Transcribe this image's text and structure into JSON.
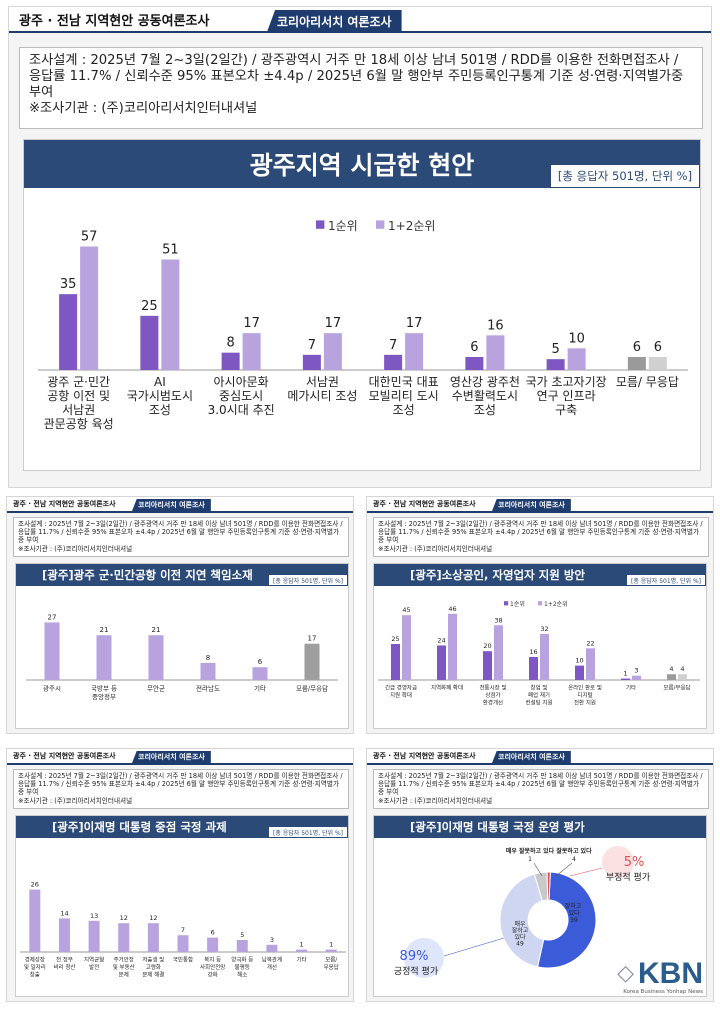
{
  "header": {
    "title": "광주 · 전남  지역현안  공동여론조사",
    "badge": "코리아리서치  여론조사"
  },
  "method": {
    "line1": "조사설계 : 2025년 7월 2~3일(2일간) / 광주광역시 거주 만 18세 이상 남녀 501명 / RDD를 이용한 전화면접조사 / 응답률 11.7% / 신뢰수준 95% 표본오차 ±4.4p / 2025년 6월 말 행안부 주민등록인구통계 기준 성·연령·지역별가중 부여",
    "line2": "※조사기관 : (주)코리아리서치인터내셔널"
  },
  "main_panel": {
    "title": "광주지역 시급한 현안",
    "unit": "[총 응답자 501명, 단위 %]"
  },
  "panel_a": {
    "title": "[광주]광주 군·민간공항 이전 지연 책임소재",
    "unit": "[총 응답자 501명, 단위 %]"
  },
  "panel_b": {
    "title": "[광주]소상공인, 자영업자 지원 방안",
    "unit": "[총 응답자 501명, 단위 %]"
  },
  "panel_c": {
    "title": "[광주]이재명 대통령 중점 국정 과제",
    "unit": "[총 응답자 501명, 단위 %]"
  },
  "panel_d": {
    "title": "[광주]이재명 대통령 국정 운영 평가"
  },
  "logo": {
    "text": "KBN",
    "sub": "Korea Business Yonhap News"
  },
  "colors": {
    "navy": "#2b4a78",
    "dark_purple": "#7e57c2",
    "light_purple": "#b9a3de",
    "gray": "#9e9e9e"
  },
  "chart_data": [
    {
      "type": "bar",
      "title": "광주지역 시급한 현안",
      "categories": [
        "광주 군·민간\n공항 이전 및\n서남권\n관문공항 육성",
        "AI\n국가시범도시\n조성",
        "아시아문화\n중심도시\n3.0시대 추진",
        "서남권\n메가시티 조성",
        "대한민국 대표\n모빌리티 도시\n조성",
        "영산강 광주천\n수변활력도시\n조성",
        "국가 초고자기장\n연구 인프라\n구축",
        "모름/ 무응답"
      ],
      "series": [
        {
          "name": "1순위",
          "values": [
            35,
            25,
            8,
            7,
            7,
            6,
            5,
            6
          ]
        },
        {
          "name": "1+2순위",
          "values": [
            57,
            51,
            17,
            17,
            17,
            16,
            10,
            6
          ]
        }
      ],
      "ylim": [
        0,
        60
      ]
    },
    {
      "type": "bar",
      "title": "[광주]광주 군·민간공항 이전 지연 책임소재",
      "categories": [
        "광주시",
        "국방부 등\n중앙정부",
        "무안군",
        "전라남도",
        "기타",
        "모름/무응답"
      ],
      "values": [
        27,
        21,
        21,
        8,
        6,
        17
      ],
      "ylim": [
        0,
        30
      ]
    },
    {
      "type": "bar",
      "title": "[광주]소상공인, 자영업자 지원 방안",
      "categories": [
        "긴급 경영자금\n지원 확대",
        "지역화폐 확대",
        "전통시장 및\n상점가\n환경개선",
        "창업 및\n폐업 재기\n컨설팅 지원",
        "온라인 판로 및\n디지털\n전환 지원",
        "기타",
        "모름/무응답"
      ],
      "series": [
        {
          "name": "1순위",
          "values": [
            25,
            24,
            20,
            16,
            10,
            1,
            4
          ]
        },
        {
          "name": "1+2순위",
          "values": [
            45,
            46,
            38,
            32,
            22,
            3,
            4
          ]
        }
      ],
      "ylim": [
        0,
        50
      ]
    },
    {
      "type": "bar",
      "title": "[광주]이재명 대통령 중점 국정 과제",
      "categories": [
        "경제성장\n및 일자리\n창출",
        "전 정부\n비리 청산",
        "지역균형\n발전",
        "주거안정\n및 부동산\n문제",
        "저출생 및\n고령화\n문제 해결",
        "국민통합",
        "복지 등\n사회안전망\n강화",
        "양극화 등\n불평등\n해소",
        "남북관계\n개선",
        "기타",
        "모름/\n무응답"
      ],
      "values": [
        26,
        14,
        13,
        12,
        12,
        7,
        6,
        5,
        3,
        1,
        1
      ],
      "ylim": [
        0,
        30
      ]
    },
    {
      "type": "pie",
      "title": "[광주]이재명 대통령 국정 운영 평가",
      "slices": [
        {
          "name": "매우 잘하고 있다",
          "value": 49
        },
        {
          "name": "잘하고 있다",
          "value": 39
        },
        {
          "name": "잘못하고 있다",
          "value": 4
        },
        {
          "name": "매우 잘못하고 있다",
          "value": 1
        }
      ],
      "callouts": [
        {
          "value": "89%",
          "label": "긍정적 평가"
        },
        {
          "value": "5%",
          "label": "부정적 평가"
        }
      ]
    }
  ]
}
